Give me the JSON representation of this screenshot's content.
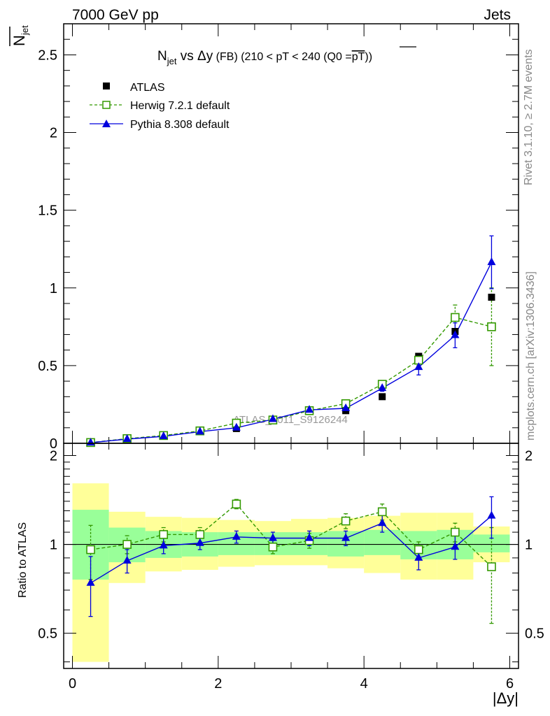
{
  "header": {
    "left": "7000 GeV pp",
    "right": "Jets"
  },
  "title": {
    "main": "N",
    "sub": "jet",
    "vs": " vs Δy",
    "fb": " (FB)",
    "range": " (210 < pT < 240 (Q0 =",
    "pt": "pT",
    "close": "))"
  },
  "ylabel": {
    "main": "N",
    "sub": "jet"
  },
  "ratio_ylabel": "Ratio to ATLAS",
  "xlabel": "|Δy|",
  "side_text_top": "Rivet 3.1.10, ≥ 2.7M events",
  "side_text_bottom": "mcplots.cern.ch [arXiv:1306.3436]",
  "watermark": "ATLAS_2011_S9126244",
  "legend": [
    {
      "label": "ATLAS",
      "marker": "filled-square",
      "color": "#000000"
    },
    {
      "label": "Herwig 7.2.1 default",
      "marker": "open-square",
      "color": "#339900",
      "dashed": true
    },
    {
      "label": "Pythia 8.308 default",
      "marker": "filled-triangle",
      "color": "#0000dd"
    }
  ],
  "colors": {
    "herwig": "#339900",
    "pythia": "#0000dd",
    "band_inner": "#99ff99",
    "band_outer": "#ffff99",
    "data": "#000000"
  },
  "chart_data": {
    "type": "scatter",
    "x": [
      0.25,
      0.75,
      1.25,
      1.75,
      2.25,
      2.75,
      3.25,
      3.75,
      4.25,
      4.75,
      5.25,
      5.75
    ],
    "bin_edges": [
      0,
      0.5,
      1.0,
      1.5,
      2.0,
      2.5,
      3.0,
      3.5,
      4.0,
      4.5,
      5.0,
      5.5,
      6.0
    ],
    "xlim": [
      -0.12,
      6.12
    ],
    "main": {
      "ylim": [
        0,
        2.7
      ],
      "yticks": [
        0,
        0.5,
        1,
        1.5,
        2,
        2.5
      ],
      "ytick_labels": [
        "0",
        "0.5",
        "1",
        "1.5",
        "2",
        "2.5"
      ]
    },
    "ratio": {
      "ylim": [
        0.38,
        2.2
      ],
      "yticks": [
        0.5,
        1,
        2
      ],
      "ytick_labels": [
        "0.5",
        "1",
        "2"
      ]
    },
    "xticks": [
      0,
      2,
      4,
      6
    ],
    "xtick_labels": [
      "0",
      "2",
      "4",
      "6"
    ],
    "series": [
      {
        "name": "ATLAS",
        "values": [
          0.005,
          0.03,
          0.045,
          0.075,
          0.095,
          0.155,
          0.205,
          0.21,
          0.3,
          0.56,
          0.72,
          0.94
        ]
      },
      {
        "name": "Herwig 7.2.1 default",
        "values": [
          0.005,
          0.03,
          0.05,
          0.08,
          0.13,
          0.15,
          0.21,
          0.255,
          0.38,
          0.535,
          0.81,
          0.75
        ],
        "errors": [
          0.001,
          0.003,
          0.004,
          0.006,
          0.01,
          0.01,
          0.012,
          0.015,
          0.02,
          0.035,
          0.08,
          0.25
        ]
      },
      {
        "name": "Pythia 8.308 default",
        "values": [
          0.004,
          0.027,
          0.045,
          0.075,
          0.1,
          0.155,
          0.215,
          0.225,
          0.355,
          0.49,
          0.695,
          1.165
        ],
        "errors": [
          0.001,
          0.003,
          0.004,
          0.005,
          0.008,
          0.01,
          0.012,
          0.014,
          0.02,
          0.05,
          0.08,
          0.17
        ]
      }
    ],
    "ratio_series": [
      {
        "name": "Herwig 7.2.1 default",
        "values": [
          0.96,
          1.0,
          1.08,
          1.08,
          1.37,
          0.98,
          1.03,
          1.2,
          1.29,
          0.96,
          1.1,
          0.84
        ],
        "errors": [
          0.2,
          0.07,
          0.06,
          0.06,
          0.05,
          0.05,
          0.06,
          0.07,
          0.08,
          0.06,
          0.08,
          0.3
        ]
      },
      {
        "name": "Pythia 8.308 default",
        "values": [
          0.74,
          0.88,
          0.99,
          1.01,
          1.06,
          1.05,
          1.05,
          1.05,
          1.18,
          0.9,
          0.98,
          1.25
        ],
        "errors": [
          0.17,
          0.08,
          0.06,
          0.05,
          0.05,
          0.05,
          0.06,
          0.06,
          0.08,
          0.08,
          0.09,
          0.2
        ]
      }
    ],
    "uncertainty_band": {
      "inner_low": [
        0.76,
        0.87,
        0.9,
        0.91,
        0.92,
        0.92,
        0.92,
        0.91,
        0.92,
        0.89,
        0.89,
        0.94
      ],
      "inner_high": [
        1.31,
        1.14,
        1.11,
        1.1,
        1.1,
        1.1,
        1.1,
        1.11,
        1.12,
        1.11,
        1.12,
        1.08
      ],
      "outer_low": [
        0.4,
        0.74,
        0.81,
        0.82,
        0.84,
        0.85,
        0.85,
        0.83,
        0.8,
        0.76,
        0.76,
        0.87
      ],
      "outer_high": [
        1.61,
        1.29,
        1.24,
        1.23,
        1.21,
        1.2,
        1.22,
        1.23,
        1.25,
        1.28,
        1.28,
        1.15
      ]
    },
    "grid": false,
    "legend_position": "top-left"
  }
}
